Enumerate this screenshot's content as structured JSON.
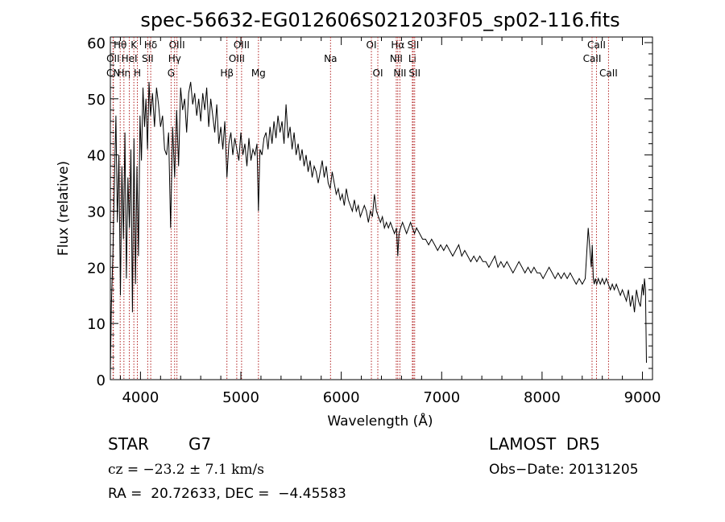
{
  "chart_data": {
    "type": "line",
    "title": "spec-56632-EG012606S021203F05_sp02-116.fits",
    "xlabel": "Wavelength (Å)",
    "ylabel": "Flux (relative)",
    "xlim": [
      3700,
      9100
    ],
    "ylim": [
      0,
      61
    ],
    "xticks": [
      4000,
      5000,
      6000,
      7000,
      8000,
      9000
    ],
    "yticks": [
      0,
      10,
      20,
      30,
      40,
      50,
      60
    ],
    "grid": false,
    "series": [
      {
        "x": [
          3700,
          3710,
          3725,
          3740,
          3755,
          3770,
          3785,
          3800,
          3815,
          3830,
          3845,
          3860,
          3875,
          3890,
          3905,
          3920,
          3935,
          3950,
          3965,
          3980,
          3995,
          4010,
          4025,
          4040,
          4055,
          4070,
          4085,
          4100,
          4120,
          4140,
          4160,
          4180,
          4200,
          4220,
          4240,
          4260,
          4280,
          4300,
          4320,
          4340,
          4360,
          4380,
          4400,
          4420,
          4440,
          4460,
          4480,
          4500,
          4520,
          4540,
          4560,
          4580,
          4600,
          4620,
          4640,
          4660,
          4680,
          4700,
          4720,
          4740,
          4760,
          4780,
          4800,
          4820,
          4840,
          4861,
          4880,
          4900,
          4920,
          4940,
          4960,
          4980,
          5000,
          5020,
          5040,
          5060,
          5080,
          5100,
          5120,
          5140,
          5160,
          5175,
          5190,
          5210,
          5230,
          5250,
          5270,
          5290,
          5310,
          5330,
          5350,
          5370,
          5390,
          5410,
          5430,
          5450,
          5470,
          5490,
          5510,
          5530,
          5550,
          5570,
          5590,
          5610,
          5630,
          5650,
          5670,
          5690,
          5710,
          5730,
          5750,
          5770,
          5790,
          5810,
          5830,
          5850,
          5870,
          5890,
          5910,
          5930,
          5950,
          5970,
          5990,
          6010,
          6030,
          6050,
          6070,
          6090,
          6110,
          6130,
          6150,
          6170,
          6190,
          6210,
          6230,
          6250,
          6270,
          6290,
          6310,
          6330,
          6350,
          6370,
          6390,
          6410,
          6430,
          6450,
          6470,
          6490,
          6510,
          6530,
          6550,
          6563,
          6575,
          6590,
          6610,
          6630,
          6650,
          6670,
          6690,
          6710,
          6730,
          6750,
          6780,
          6810,
          6840,
          6870,
          6900,
          6930,
          6960,
          6990,
          7020,
          7050,
          7080,
          7110,
          7140,
          7170,
          7200,
          7230,
          7260,
          7290,
          7320,
          7350,
          7380,
          7410,
          7440,
          7470,
          7500,
          7530,
          7560,
          7590,
          7620,
          7650,
          7680,
          7710,
          7740,
          7770,
          7800,
          7830,
          7860,
          7890,
          7920,
          7950,
          7980,
          8010,
          8040,
          8070,
          8100,
          8130,
          8160,
          8190,
          8220,
          8250,
          8280,
          8310,
          8340,
          8370,
          8400,
          8430,
          8460,
          8490,
          8500,
          8510,
          8520,
          8530,
          8545,
          8560,
          8580,
          8600,
          8620,
          8640,
          8660,
          8680,
          8700,
          8720,
          8740,
          8760,
          8780,
          8800,
          8820,
          8840,
          8860,
          8880,
          8900,
          8920,
          8940,
          8960,
          8980,
          9000,
          9010,
          9020,
          9030,
          9040
        ],
        "y": [
          1,
          13,
          22,
          35,
          47,
          28,
          40,
          15,
          38,
          25,
          44,
          18,
          36,
          27,
          41,
          12,
          43,
          17,
          38,
          22,
          47,
          39,
          52,
          45,
          50,
          41,
          53,
          47,
          51,
          45,
          52,
          49,
          45,
          47,
          41,
          40,
          44,
          27,
          45,
          36,
          48,
          38,
          52,
          48,
          50,
          44,
          51,
          53,
          49,
          51,
          47,
          50,
          46,
          51,
          48,
          52,
          45,
          50,
          47,
          44,
          49,
          42,
          45,
          41,
          46,
          36,
          42,
          44,
          40,
          43,
          41,
          39,
          44,
          40,
          42,
          38,
          43,
          39,
          41,
          40,
          42,
          30,
          41,
          40,
          43,
          44,
          41,
          45,
          42,
          46,
          43,
          47,
          44,
          46,
          42,
          49,
          43,
          45,
          41,
          44,
          40,
          42,
          39,
          41,
          38,
          40,
          37,
          39,
          36,
          38,
          37,
          35,
          37,
          39,
          36,
          38,
          35,
          34,
          37,
          35,
          33,
          34,
          32,
          33,
          31,
          34,
          32,
          31,
          30,
          32,
          30,
          31,
          29,
          30,
          31,
          30,
          28,
          30,
          29,
          33,
          30,
          29,
          28,
          29,
          27,
          28,
          27,
          28,
          27,
          26,
          27,
          22,
          26,
          27,
          28,
          27,
          26,
          27,
          28,
          27,
          26,
          27,
          26,
          25,
          25,
          24,
          25,
          24,
          23,
          24,
          23,
          24,
          23,
          22,
          23,
          24,
          22,
          23,
          22,
          21,
          22,
          21,
          22,
          21,
          21,
          20,
          21,
          22,
          20,
          21,
          20,
          21,
          20,
          19,
          20,
          21,
          20,
          19,
          20,
          19,
          20,
          19,
          19,
          18,
          19,
          20,
          19,
          18,
          19,
          18,
          19,
          18,
          19,
          18,
          17,
          18,
          17,
          18,
          27,
          20,
          24,
          18,
          17,
          18,
          17,
          18,
          17,
          18,
          17,
          18,
          17,
          16,
          17,
          16,
          17,
          16,
          15,
          16,
          15,
          14,
          16,
          13,
          15,
          12,
          16,
          14,
          13,
          17,
          15,
          18,
          16,
          3
        ]
      }
    ],
    "spectral_lines": [
      {
        "name": "Hθ",
        "wl": 3798,
        "row": 0
      },
      {
        "name": "OII",
        "wl": 3727,
        "row": 1
      },
      {
        "name": "Hη",
        "wl": 3835,
        "row": 2
      },
      {
        "name": "K",
        "wl": 3934,
        "row": 0
      },
      {
        "name": "HeI",
        "wl": 3889,
        "row": 1
      },
      {
        "name": "CN",
        "wl": 3730,
        "row": 2
      },
      {
        "name": "Hδ",
        "wl": 4102,
        "row": 0
      },
      {
        "name": "SII",
        "wl": 4072,
        "row": 1
      },
      {
        "name": "H",
        "wl": 3969,
        "row": 2
      },
      {
        "name": "OIII",
        "wl": 4363,
        "row": 0
      },
      {
        "name": "Hγ",
        "wl": 4340,
        "row": 1
      },
      {
        "name": "G",
        "wl": 4305,
        "row": 2
      },
      {
        "name": "OIII",
        "wl": 5007,
        "row": 0
      },
      {
        "name": "OIII",
        "wl": 4959,
        "row": 1
      },
      {
        "name": "Hβ",
        "wl": 4861,
        "row": 2
      },
      {
        "name": "Mg",
        "wl": 5175,
        "row": 2
      },
      {
        "name": "Na",
        "wl": 5893,
        "row": 1
      },
      {
        "name": "OI",
        "wl": 6300,
        "row": 0
      },
      {
        "name": "OI",
        "wl": 6364,
        "row": 2
      },
      {
        "name": "Hα",
        "wl": 6563,
        "row": 0
      },
      {
        "name": "NII",
        "wl": 6548,
        "row": 1
      },
      {
        "name": "NII",
        "wl": 6584,
        "row": 2
      },
      {
        "name": "SII",
        "wl": 6717,
        "row": 0
      },
      {
        "name": "Li",
        "wl": 6708,
        "row": 1
      },
      {
        "name": "SII",
        "wl": 6731,
        "row": 2
      },
      {
        "name": "CaII",
        "wl": 8542,
        "row": 0
      },
      {
        "name": "CaII",
        "wl": 8498,
        "row": 1
      },
      {
        "name": "CaII",
        "wl": 8662,
        "row": 2
      }
    ],
    "line_color": "#b22222"
  },
  "info": {
    "class": "STAR",
    "subclass": "G7",
    "survey": "LAMOST  DR5",
    "cz": "cz = −23.2 ± 7.1 km/s",
    "obs_date": "Obs−Date: 20131205",
    "radec": "RA =  20.72633, DEC =  −4.45583"
  }
}
